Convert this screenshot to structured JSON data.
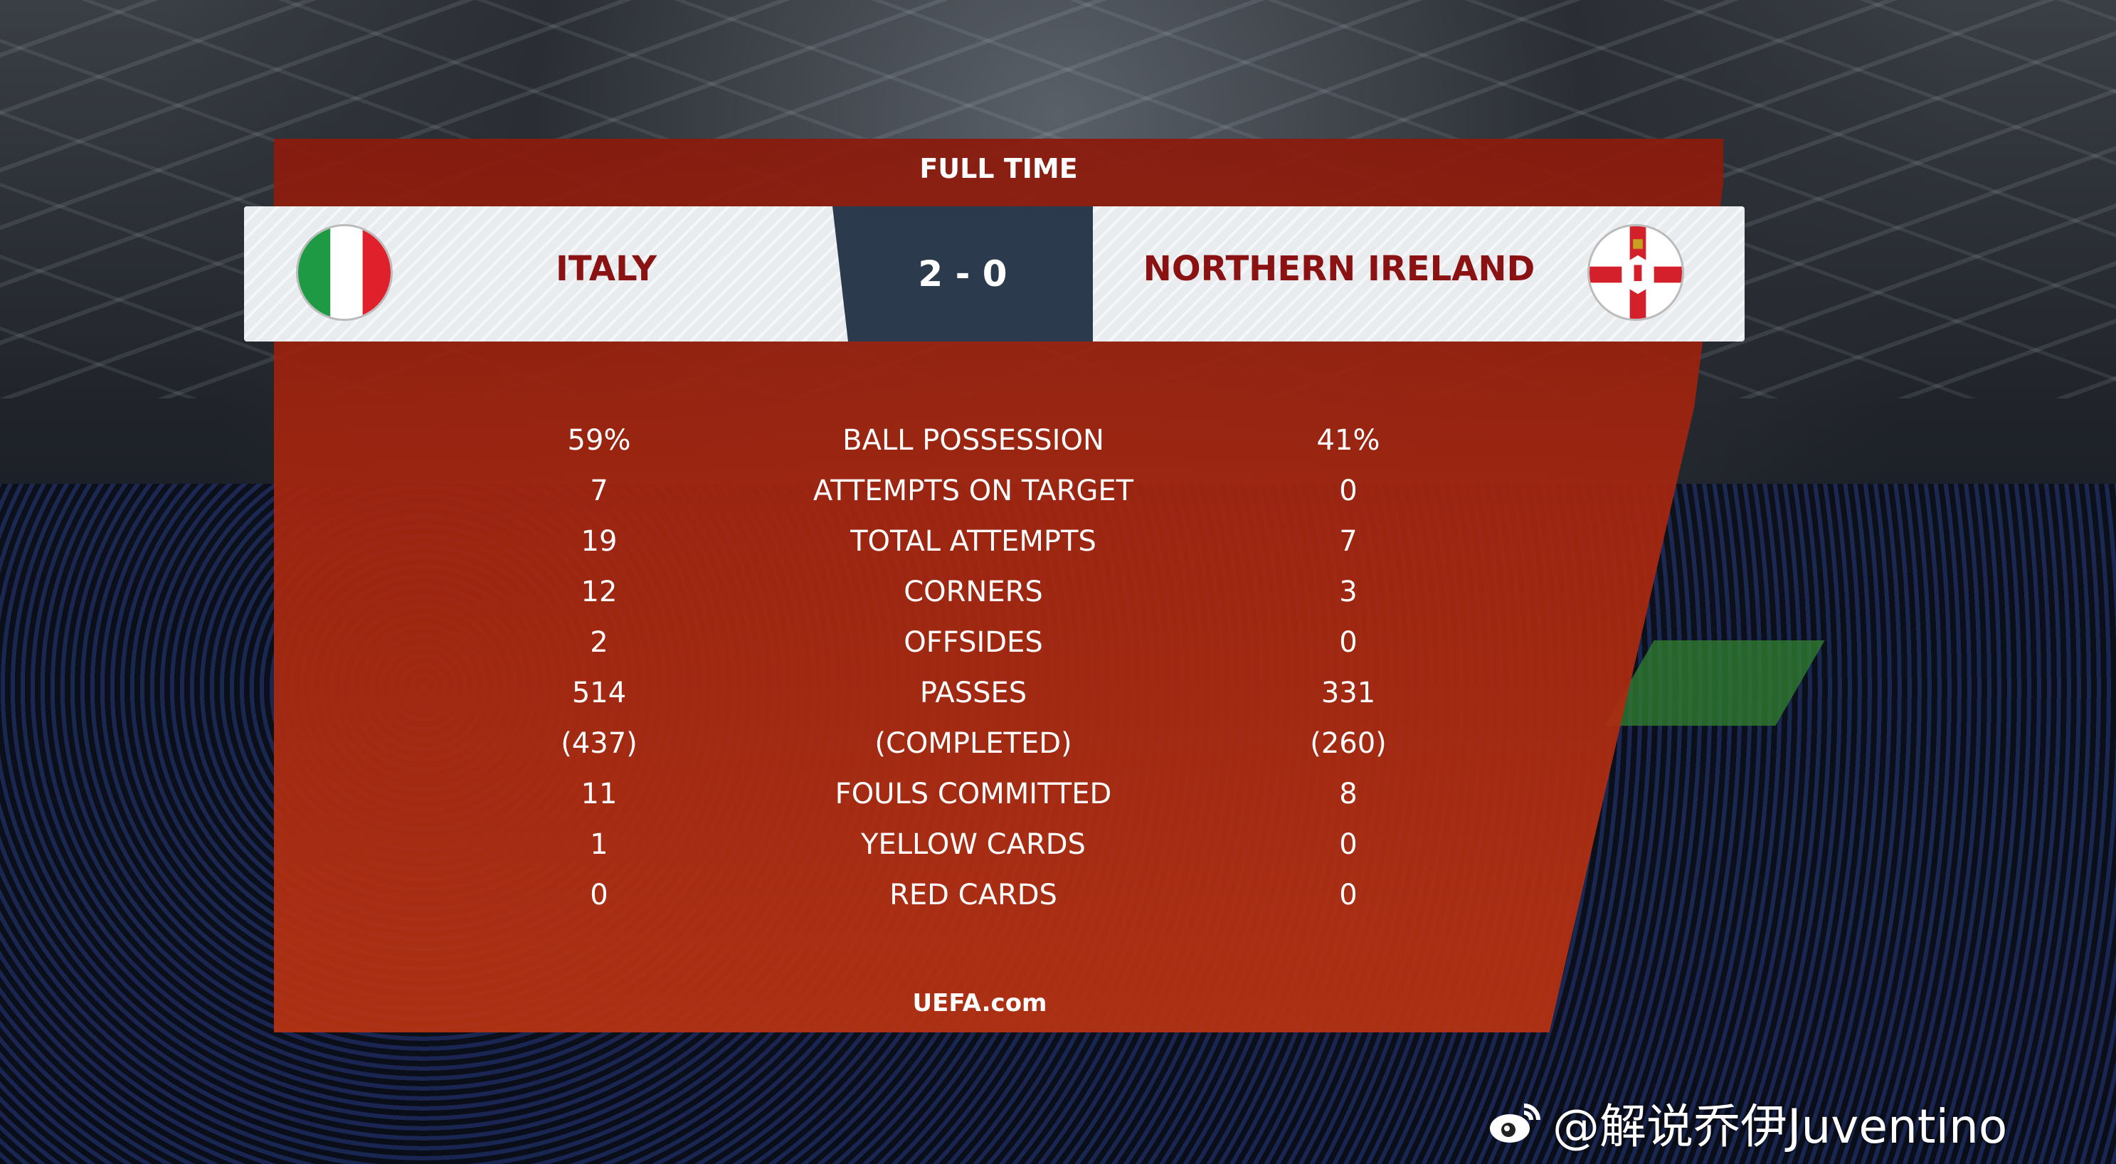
{
  "header": {
    "status": "FULL TIME",
    "score": "2 - 0"
  },
  "home": {
    "name": "ITALY",
    "flag": "italy-flag-icon"
  },
  "away": {
    "name": "NORTHERN IRELAND",
    "flag": "northern-ireland-flag-icon"
  },
  "stats": [
    {
      "home": "59%",
      "label": "BALL POSSESSION",
      "away": "41%"
    },
    {
      "home": "7",
      "label": "ATTEMPTS ON TARGET",
      "away": "0"
    },
    {
      "home": "19",
      "label": "TOTAL ATTEMPTS",
      "away": "7"
    },
    {
      "home": "12",
      "label": "CORNERS",
      "away": "3"
    },
    {
      "home": "2",
      "label": "OFFSIDES",
      "away": "0"
    },
    {
      "home": "514",
      "label": "PASSES",
      "away": "331"
    },
    {
      "home": "(437)",
      "label": "(COMPLETED)",
      "away": "(260)"
    },
    {
      "home": "11",
      "label": "FOULS COMMITTED",
      "away": "8"
    },
    {
      "home": "1",
      "label": "YELLOW CARDS",
      "away": "0"
    },
    {
      "home": "0",
      "label": "RED CARDS",
      "away": "0"
    }
  ],
  "footer": {
    "source": "UEFA.com"
  },
  "watermark": {
    "text": "@解说乔伊Juventino",
    "icon": "weibo-icon"
  },
  "colors": {
    "panel": "#a5260f",
    "score_box": "#2b3b4d",
    "team_text": "#8b1212"
  }
}
